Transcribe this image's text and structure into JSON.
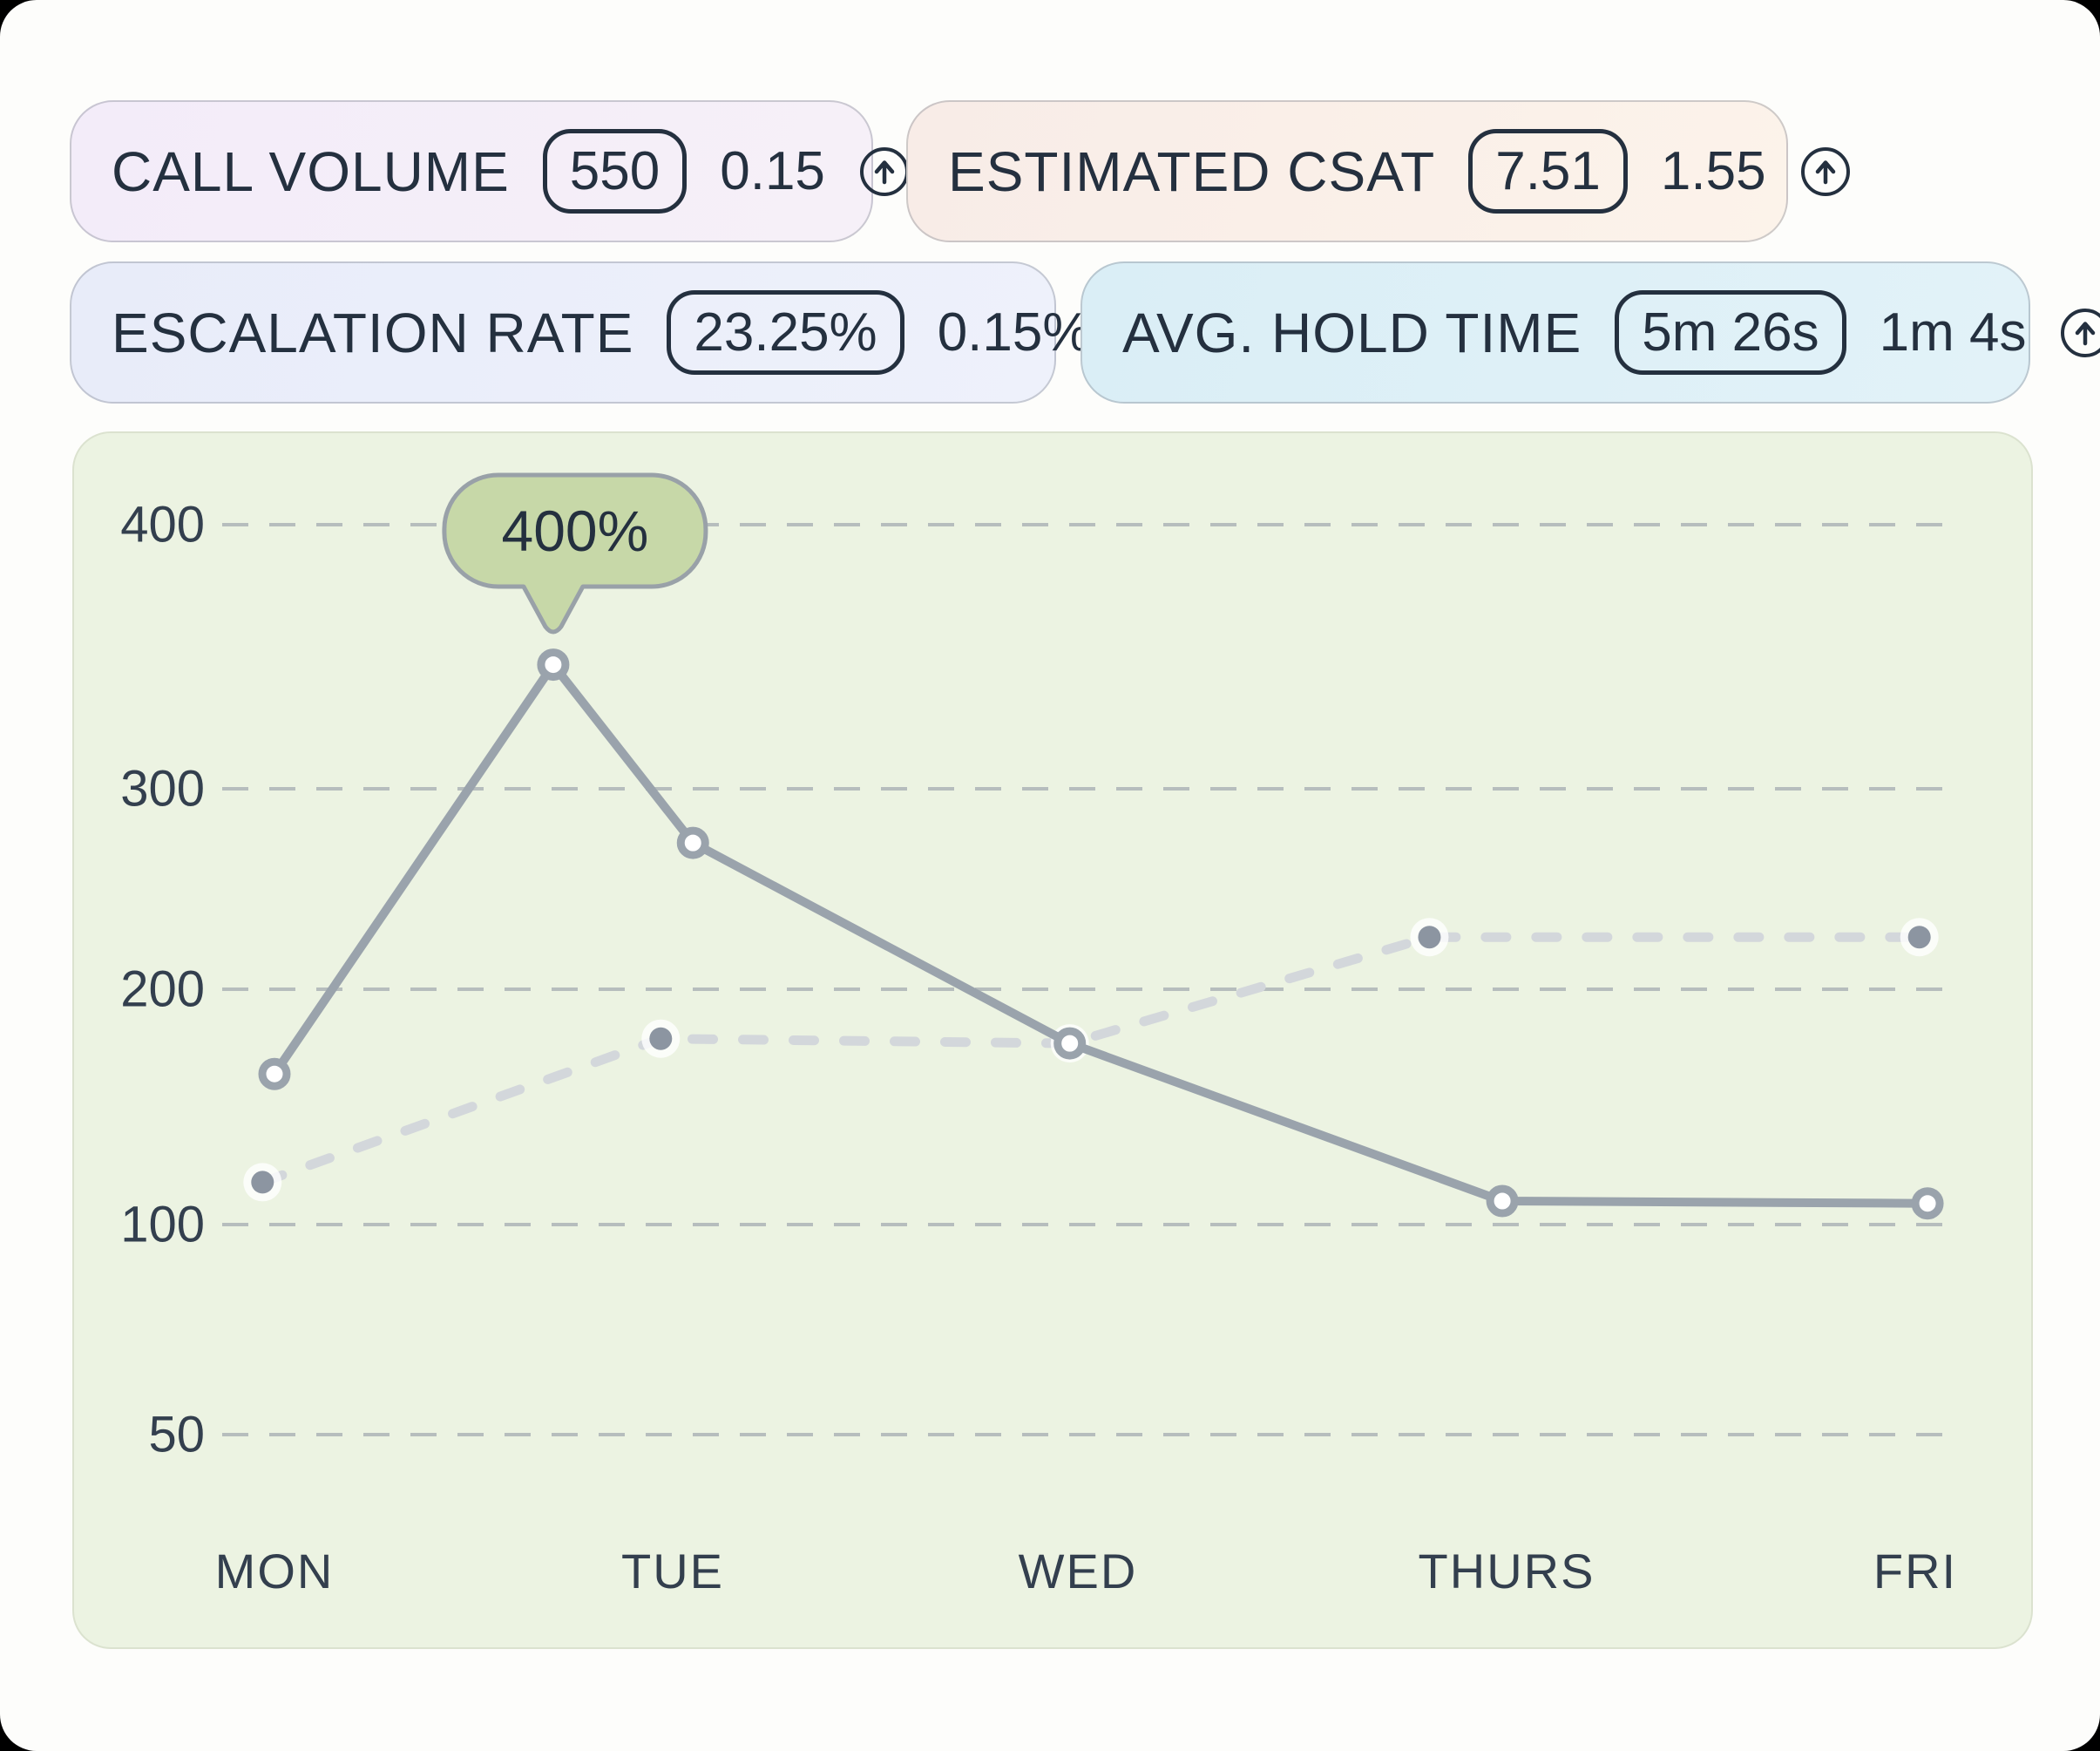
{
  "cards": [
    {
      "label": "CALL VOLUME",
      "badge": "550",
      "delta": "0.15",
      "icon": "trend-up-icon"
    },
    {
      "label": "ESTIMATED CSAT",
      "badge": "7.51",
      "delta": "1.55",
      "icon": "trend-up-icon"
    },
    {
      "label": "ESCALATION RATE",
      "badge": "23.25%",
      "delta": "0.15%",
      "icon": "trend-up-icon"
    },
    {
      "label": "AVG. HOLD TIME",
      "badge": "5m 26s",
      "delta": "1m 4s",
      "icon": "trend-up-icon"
    }
  ],
  "chart_data": {
    "type": "line",
    "categories": [
      "MON",
      "TUE",
      "WED",
      "THURS",
      "FRI"
    ],
    "y_ticks": [
      400,
      300,
      200,
      100,
      50
    ],
    "ylim": [
      0,
      430
    ],
    "grid": "horizontal-dashed",
    "legend": "none",
    "annotation": {
      "text": "400%",
      "series": "primary",
      "point_index": 1
    },
    "series": [
      {
        "name": "primary",
        "style": "solid",
        "marker": "open-circle",
        "points": [
          {
            "day": 0.0,
            "value": 164
          },
          {
            "day": 0.7,
            "value": 347
          },
          {
            "day": 1.05,
            "value": 273
          },
          {
            "day": 1.98,
            "value": 177
          },
          {
            "day": 2.99,
            "value": 110
          },
          {
            "day": 4.03,
            "value": 109
          }
        ]
      },
      {
        "name": "secondary",
        "style": "dashed",
        "marker": "dot",
        "points": [
          {
            "day": -0.03,
            "value": 118
          },
          {
            "day": 0.97,
            "value": 179
          },
          {
            "day": 1.98,
            "value": 177
          },
          {
            "day": 2.82,
            "value": 226
          },
          {
            "day": 4.01,
            "value": 226
          }
        ]
      }
    ]
  },
  "colors": {
    "text": "#24303f",
    "axis_text": "#333f4e",
    "card_call_volume_bg": "#f3ecf9",
    "card_estimated_csat_bg": "#faf0ea",
    "card_escalation_rate_bg": "#e9edf9",
    "card_avg_hold_time_bg": "#def0f7",
    "panel_bg": "#ecf3e2",
    "gridline": "#a4abb1",
    "solid_line": "#9aa3ac",
    "dashed_line": "#d3d7db",
    "dashed_dot": "#8c95a1",
    "marker_fill": "#ffffff",
    "tooltip_bg": "#c7d8a8",
    "tooltip_border": "#99a1a8"
  }
}
